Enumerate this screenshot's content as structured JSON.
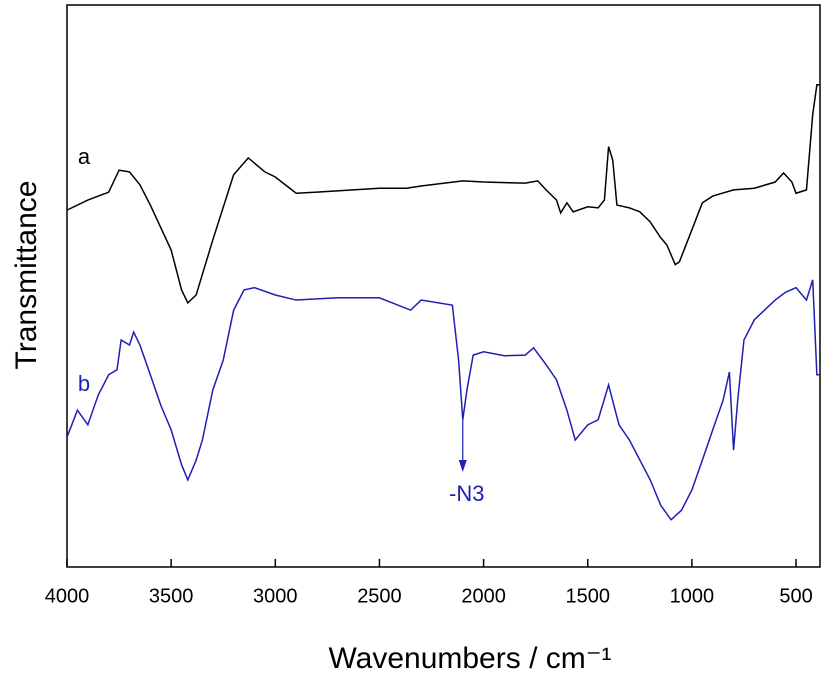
{
  "chart_data": {
    "type": "line",
    "x_label": "Wavenumbers / cm⁻¹",
    "y_label": "Transmittance",
    "xlim": [
      4000,
      385
    ],
    "ylim": [
      0,
      100
    ],
    "xticks": [
      4000,
      3500,
      3000,
      2500,
      2000,
      1500,
      1000,
      500
    ],
    "series": [
      {
        "name": "a",
        "color": "#000000",
        "x": [
          4000,
          3900,
          3800,
          3750,
          3700,
          3650,
          3600,
          3500,
          3450,
          3420,
          3380,
          3300,
          3200,
          3130,
          3050,
          3000,
          2900,
          2800,
          2500,
          2370,
          2300,
          2100,
          2000,
          1800,
          1740,
          1700,
          1650,
          1630,
          1600,
          1570,
          1500,
          1450,
          1420,
          1400,
          1380,
          1360,
          1300,
          1250,
          1200,
          1150,
          1120,
          1080,
          1060,
          1000,
          950,
          900,
          800,
          700,
          600,
          560,
          520,
          500,
          450,
          420,
          400,
          385
        ],
        "values": [
          63.5,
          65.3,
          66.7,
          70.6,
          70.3,
          68.0,
          64.4,
          56.4,
          49.3,
          47.0,
          48.4,
          58.2,
          69.8,
          72.8,
          70.3,
          69.4,
          66.5,
          66.7,
          67.4,
          67.4,
          67.8,
          68.7,
          68.5,
          68.3,
          68.7,
          67.1,
          65.3,
          63.0,
          64.8,
          63.2,
          64.1,
          63.9,
          65.3,
          74.8,
          72.4,
          64.4,
          63.9,
          63.2,
          61.4,
          58.6,
          57.3,
          53.8,
          54.3,
          60.0,
          64.8,
          66.0,
          67.1,
          67.4,
          68.5,
          70.1,
          68.5,
          66.5,
          67.1,
          80.5,
          85.8,
          85.8
        ]
      },
      {
        "name": "b",
        "color": "#1f1fb4",
        "x": [
          4000,
          3950,
          3900,
          3850,
          3800,
          3760,
          3740,
          3700,
          3680,
          3650,
          3600,
          3550,
          3500,
          3450,
          3420,
          3380,
          3350,
          3300,
          3250,
          3200,
          3150,
          3100,
          3000,
          2900,
          2700,
          2500,
          2350,
          2300,
          2150,
          2120,
          2100,
          2080,
          2050,
          2000,
          1900,
          1800,
          1760,
          1700,
          1650,
          1600,
          1560,
          1500,
          1450,
          1400,
          1350,
          1300,
          1200,
          1150,
          1100,
          1050,
          1000,
          950,
          900,
          850,
          820,
          800,
          780,
          750,
          700,
          600,
          550,
          500,
          450,
          420,
          400,
          385
        ],
        "values": [
          23.1,
          27.9,
          25.3,
          30.6,
          34.2,
          35.1,
          40.4,
          39.5,
          41.8,
          39.5,
          34.2,
          28.8,
          24.4,
          18.2,
          15.5,
          19.0,
          22.6,
          31.5,
          36.8,
          45.7,
          49.3,
          49.7,
          48.4,
          47.5,
          47.9,
          47.9,
          45.7,
          47.5,
          46.6,
          36.8,
          26.2,
          31.5,
          37.7,
          38.3,
          37.6,
          37.7,
          39.0,
          36.0,
          33.3,
          27.9,
          22.6,
          25.3,
          26.2,
          32.4,
          25.3,
          22.6,
          15.5,
          11.0,
          8.4,
          10.1,
          13.7,
          19.0,
          24.4,
          29.7,
          34.7,
          20.8,
          29.7,
          40.4,
          44.0,
          47.5,
          48.9,
          49.7,
          47.5,
          51.1,
          34.2,
          34.2
        ]
      }
    ],
    "annotations": [
      {
        "text": "-N3",
        "x": 2100
      }
    ]
  }
}
